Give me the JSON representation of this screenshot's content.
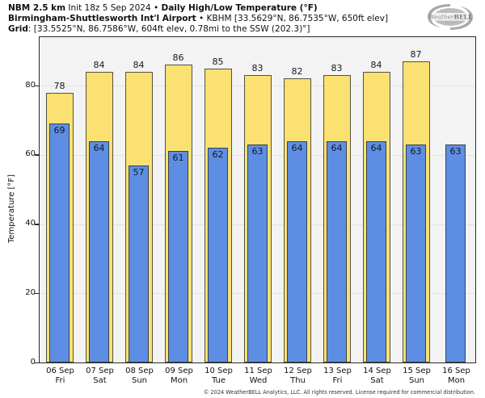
{
  "header": {
    "line1": {
      "model_bold": "NBM 2.5 km",
      "init_text": " Init 18z 5 Sep 2024 • ",
      "product_bold": "Daily High/Low Temperature (°F)"
    },
    "line2": {
      "station_bold": "Birmingham-Shuttlesworth Int'l Airport",
      "station_details": " • KBHM [33.5629°N, 86.7535°W, 650ft elev]"
    },
    "line3": {
      "grid_bold": "Grid",
      "grid_details": ": [33.5525°N, 86.7586°W, 604ft elev, 0.78mi to the SSW (202.3)°]"
    }
  },
  "logo": {
    "text_script": "Weather",
    "text_caps": "BELL"
  },
  "chart_data": {
    "type": "bar",
    "title": "Daily High/Low Temperature (°F)",
    "ylabel": "Temperature [°F]",
    "ylim": [
      0,
      94
    ],
    "yticks": [
      0,
      20,
      40,
      60,
      80
    ],
    "grid": "dotted horizontal gridlines at 20/40/60/80",
    "legend": "none (yellow = daily high, blue = daily low)",
    "plot_background": "#f3f3f3",
    "categories": [
      {
        "date": "06 Sep",
        "day": "Fri"
      },
      {
        "date": "07 Sep",
        "day": "Sat"
      },
      {
        "date": "08 Sep",
        "day": "Sun"
      },
      {
        "date": "09 Sep",
        "day": "Mon"
      },
      {
        "date": "10 Sep",
        "day": "Tue"
      },
      {
        "date": "11 Sep",
        "day": "Wed"
      },
      {
        "date": "12 Sep",
        "day": "Thu"
      },
      {
        "date": "13 Sep",
        "day": "Fri"
      },
      {
        "date": "14 Sep",
        "day": "Sat"
      },
      {
        "date": "15 Sep",
        "day": "Sun"
      },
      {
        "date": "16 Sep",
        "day": "Mon"
      }
    ],
    "series": [
      {
        "name": "High",
        "color": "#FBE172",
        "values": [
          78,
          84,
          84,
          86,
          85,
          83,
          82,
          83,
          84,
          87,
          null
        ]
      },
      {
        "name": "Low",
        "color": "#5E8EE3",
        "values": [
          69,
          64,
          57,
          61,
          62,
          63,
          64,
          64,
          64,
          63,
          63
        ]
      }
    ]
  },
  "footer": {
    "copyright": "© 2024 WeatherBELL Analytics, LLC. All rights reserved. License required for commercial distribution."
  }
}
